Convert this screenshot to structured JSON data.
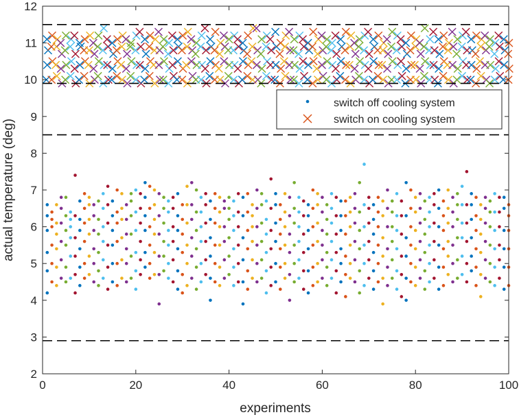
{
  "chart_data": {
    "type": "scatter",
    "title": "",
    "xlabel": "experiments",
    "ylabel": "actual temperature (deg)",
    "xlim": [
      0,
      100
    ],
    "ylim": [
      2,
      12
    ],
    "xticks": [
      0,
      20,
      40,
      60,
      80,
      100
    ],
    "yticks": [
      2,
      3,
      4,
      5,
      6,
      7,
      8,
      9,
      10,
      11,
      12
    ],
    "grid": false,
    "legend_position": "upper-right, inside",
    "legend": [
      {
        "label": "switch off cooling system",
        "marker": "dot",
        "color": "#0072BD"
      },
      {
        "label": "switch on cooling system",
        "marker": "x",
        "color": "#D95319"
      }
    ],
    "color_order": [
      "#0072BD",
      "#D95319",
      "#EDB120",
      "#7E2F8E",
      "#77AC30",
      "#4DBEEE",
      "#A2142F"
    ],
    "reference_lines": [
      11.5,
      9.9,
      8.5,
      2.9
    ],
    "off": [
      [
        4.2,
        4.8,
        5.3,
        5.9,
        6.3,
        6.6
      ],
      [
        4.5,
        5.0,
        5.5,
        6.0,
        6.4,
        6.2
      ],
      [
        4.4,
        4.9,
        5.4,
        5.8,
        6.1,
        6.6
      ],
      [
        4.6,
        5.1,
        5.6,
        6.1,
        6.5,
        6.8
      ],
      [
        4.5,
        4.9,
        5.5,
        5.9,
        6.3,
        6.8
      ],
      [
        4.6,
        5.2,
        5.7,
        6.0,
        6.4,
        6.2
      ],
      [
        4.2,
        4.7,
        5.2,
        5.7,
        6.3,
        7.4
      ],
      [
        4.4,
        4.9,
        5.4,
        5.9,
        6.2,
        6.7
      ],
      [
        4.6,
        5.0,
        5.6,
        6.1,
        6.5,
        6.9
      ],
      [
        4.7,
        5.2,
        5.8,
        6.2,
        6.6,
        6.8
      ],
      [
        4.5,
        5.0,
        5.4,
        5.9,
        6.3,
        6.6
      ],
      [
        4.4,
        4.8,
        5.3,
        5.8,
        6.2,
        6.7
      ],
      [
        4.6,
        5.1,
        5.6,
        6.0,
        6.5,
        6.9
      ],
      [
        4.3,
        4.9,
        5.5,
        6.1,
        6.6,
        7.1
      ],
      [
        4.5,
        5.0,
        5.5,
        5.9,
        6.3,
        6.7
      ],
      [
        4.4,
        5.0,
        5.6,
        6.1,
        6.4,
        7.0
      ],
      [
        4.6,
        5.1,
        5.7,
        6.2,
        6.5,
        6.9
      ],
      [
        4.5,
        5.0,
        5.4,
        5.8,
        6.2,
        6.6
      ],
      [
        4.6,
        5.2,
        5.8,
        6.3,
        6.7,
        6.9
      ],
      [
        4.3,
        4.8,
        5.3,
        5.9,
        6.4,
        7.0
      ],
      [
        4.7,
        5.1,
        5.6,
        6.1,
        6.5,
        6.9
      ],
      [
        4.9,
        5.3,
        5.9,
        6.3,
        6.8,
        7.2
      ],
      [
        4.6,
        5.0,
        5.5,
        6.0,
        6.5,
        7.1
      ],
      [
        4.7,
        5.3,
        5.8,
        6.2,
        6.6,
        7.0
      ],
      [
        3.9,
        4.7,
        5.2,
        5.8,
        6.3,
        6.9
      ],
      [
        4.8,
        5.2,
        5.6,
        6.1,
        6.5,
        6.8
      ],
      [
        4.6,
        5.0,
        5.5,
        5.9,
        6.4,
        6.7
      ],
      [
        4.5,
        5.1,
        5.6,
        6.0,
        6.5,
        6.8
      ],
      [
        4.3,
        4.8,
        5.4,
        5.9,
        6.3,
        6.9
      ],
      [
        4.2,
        4.7,
        5.3,
        5.8,
        6.2,
        6.6
      ],
      [
        4.4,
        5.0,
        5.5,
        6.1,
        6.6,
        7.1
      ],
      [
        4.6,
        5.2,
        5.7,
        6.2,
        6.6,
        7.2
      ],
      [
        4.3,
        4.9,
        5.4,
        5.9,
        6.4,
        7.0
      ],
      [
        4.5,
        5.0,
        5.6,
        6.0,
        6.4,
        6.8
      ],
      [
        4.7,
        5.1,
        5.6,
        6.1,
        6.6,
        6.9
      ],
      [
        4.0,
        4.6,
        5.2,
        5.7,
        6.2,
        6.7
      ],
      [
        4.5,
        5.0,
        5.5,
        6.1,
        6.5,
        6.9
      ],
      [
        4.4,
        4.9,
        5.5,
        6.0,
        6.4,
        6.8
      ],
      [
        4.6,
        5.1,
        5.6,
        6.0,
        6.5,
        6.7
      ],
      [
        4.7,
        5.2,
        5.7,
        6.2,
        6.5,
        6.8
      ],
      [
        4.4,
        4.9,
        5.4,
        5.9,
        6.3,
        6.7
      ],
      [
        4.5,
        5.0,
        5.5,
        6.0,
        6.4,
        6.9
      ],
      [
        3.9,
        4.5,
        5.1,
        5.7,
        6.3,
        6.8
      ],
      [
        4.3,
        4.8,
        5.4,
        5.9,
        6.4,
        6.9
      ],
      [
        4.6,
        5.1,
        5.6,
        6.0,
        6.3,
        6.6
      ],
      [
        4.5,
        5.0,
        5.5,
        6.0,
        6.5,
        7.0
      ],
      [
        4.6,
        5.1,
        5.6,
        6.1,
        6.6,
        6.9
      ],
      [
        4.2,
        4.8,
        5.3,
        5.8,
        6.2,
        6.7
      ],
      [
        4.4,
        4.9,
        5.4,
        5.9,
        6.5,
        7.3
      ],
      [
        4.5,
        5.0,
        5.6,
        6.1,
        6.6,
        6.9
      ],
      [
        4.3,
        4.9,
        5.4,
        5.8,
        6.2,
        6.6
      ],
      [
        4.6,
        5.0,
        5.5,
        6.0,
        6.4,
        6.9
      ],
      [
        4.0,
        4.7,
        5.3,
        5.8,
        6.3,
        6.8
      ],
      [
        4.5,
        5.0,
        5.5,
        6.1,
        6.5,
        7.2
      ],
      [
        4.6,
        5.1,
        5.6,
        6.0,
        6.4,
        6.8
      ],
      [
        4.3,
        4.8,
        5.3,
        5.8,
        6.3,
        6.7
      ],
      [
        4.2,
        4.8,
        5.4,
        5.9,
        6.3,
        6.6
      ],
      [
        4.4,
        4.9,
        5.5,
        6.0,
        6.5,
        7.0
      ],
      [
        4.5,
        5.0,
        5.6,
        6.1,
        6.6,
        6.9
      ],
      [
        4.6,
        5.1,
        5.5,
        5.9,
        6.4,
        6.8
      ],
      [
        4.4,
        4.9,
        5.3,
        5.8,
        6.2,
        6.6
      ],
      [
        4.6,
        5.1,
        5.6,
        6.1,
        6.5,
        6.9
      ],
      [
        4.2,
        4.8,
        5.3,
        5.8,
        6.3,
        6.8
      ],
      [
        4.5,
        5.0,
        5.4,
        5.9,
        6.3,
        6.7
      ],
      [
        4.1,
        4.7,
        5.2,
        5.8,
        6.3,
        6.7
      ],
      [
        4.6,
        5.0,
        5.5,
        6.0,
        6.4,
        6.8
      ],
      [
        4.5,
        5.1,
        5.6,
        6.1,
        6.5,
        6.9
      ],
      [
        4.2,
        4.8,
        5.4,
        5.9,
        6.4,
        7.2
      ],
      [
        4.4,
        5.0,
        5.5,
        6.0,
        6.6,
        7.7
      ],
      [
        4.6,
        5.1,
        5.6,
        6.1,
        6.5,
        6.8
      ],
      [
        4.3,
        4.8,
        5.3,
        5.8,
        6.2,
        6.6
      ],
      [
        4.5,
        5.0,
        5.5,
        6.0,
        6.4,
        6.8
      ],
      [
        3.9,
        4.6,
        5.2,
        5.7,
        6.3,
        6.7
      ],
      [
        4.4,
        4.9,
        5.4,
        6.0,
        6.5,
        7.0
      ],
      [
        4.6,
        5.1,
        5.6,
        6.0,
        6.4,
        6.7
      ],
      [
        4.3,
        4.8,
        5.4,
        5.9,
        6.3,
        6.9
      ],
      [
        4.1,
        4.7,
        5.2,
        5.8,
        6.3,
        6.7
      ],
      [
        4.0,
        4.6,
        5.2,
        5.7,
        6.3,
        7.2
      ],
      [
        4.5,
        5.0,
        5.5,
        6.0,
        6.5,
        7.0
      ],
      [
        4.4,
        4.9,
        5.4,
        5.9,
        6.4,
        6.8
      ],
      [
        4.6,
        5.1,
        5.6,
        6.1,
        6.5,
        6.9
      ],
      [
        4.3,
        4.8,
        5.3,
        5.8,
        6.2,
        6.7
      ],
      [
        4.5,
        5.0,
        5.5,
        6.0,
        6.4,
        6.8
      ],
      [
        4.6,
        5.1,
        5.6,
        6.1,
        6.6,
        6.9
      ],
      [
        4.3,
        4.9,
        5.5,
        6.0,
        6.5,
        7.0
      ],
      [
        4.4,
        4.9,
        5.4,
        5.9,
        6.3,
        6.7
      ],
      [
        4.7,
        5.2,
        5.6,
        6.1,
        6.5,
        7.0
      ],
      [
        4.5,
        5.0,
        5.5,
        6.0,
        6.4,
        6.8
      ],
      [
        4.6,
        5.1,
        5.7,
        6.2,
        6.6,
        6.9
      ],
      [
        4.7,
        5.2,
        5.7,
        6.1,
        6.6,
        7.1
      ],
      [
        4.5,
        5.0,
        5.6,
        6.1,
        6.6,
        7.5
      ],
      [
        4.8,
        5.2,
        5.7,
        6.2,
        6.6,
        6.9
      ],
      [
        4.4,
        4.9,
        5.4,
        5.9,
        6.3,
        6.8
      ],
      [
        4.1,
        4.7,
        5.3,
        5.8,
        6.2,
        6.6
      ],
      [
        4.6,
        5.1,
        5.6,
        6.1,
        6.5,
        6.8
      ],
      [
        4.5,
        5.0,
        5.5,
        6.0,
        6.4,
        6.7
      ],
      [
        4.4,
        4.9,
        5.4,
        5.9,
        6.4,
        6.9
      ],
      [
        4.6,
        5.1,
        5.5,
        6.0,
        6.4,
        6.8
      ],
      [
        4.3,
        4.9,
        5.4,
        5.9,
        6.5,
        6.8
      ],
      [
        4.4,
        4.9,
        5.4,
        5.9,
        6.3,
        6.6
      ]
    ],
    "on": [
      [
        10.0,
        10.4,
        10.8,
        11.1
      ],
      [
        10.0,
        10.5,
        10.9,
        11.2
      ],
      [
        10.1,
        10.4,
        10.9,
        11.1
      ],
      [
        9.9,
        10.3,
        10.7,
        11.0
      ],
      [
        10.0,
        10.4,
        10.8,
        11.2
      ],
      [
        10.1,
        10.5,
        10.9,
        11.1
      ],
      [
        9.9,
        10.3,
        10.7,
        11.2
      ],
      [
        10.0,
        10.4,
        10.9,
        11.0
      ],
      [
        10.1,
        10.5,
        10.8,
        11.1
      ],
      [
        9.9,
        10.4,
        10.8,
        11.2
      ],
      [
        10.0,
        10.3,
        10.7,
        11.0
      ],
      [
        10.1,
        10.5,
        10.9,
        11.2
      ],
      [
        9.9,
        10.4,
        10.8,
        11.4
      ],
      [
        10.0,
        10.4,
        10.9,
        11.1
      ],
      [
        10.0,
        10.3,
        10.7,
        11.0
      ],
      [
        10.1,
        10.5,
        10.8,
        11.1
      ],
      [
        10.0,
        10.4,
        10.9,
        11.2
      ],
      [
        9.9,
        10.3,
        10.7,
        11.1
      ],
      [
        10.1,
        10.5,
        10.9,
        11.0
      ],
      [
        10.0,
        10.4,
        10.8,
        11.2
      ],
      [
        9.9,
        10.4,
        10.9,
        11.3
      ],
      [
        10.0,
        10.3,
        10.7,
        11.1
      ],
      [
        10.1,
        10.5,
        10.9,
        11.2
      ],
      [
        9.9,
        10.4,
        10.8,
        11.1
      ],
      [
        10.0,
        10.4,
        10.8,
        11.3
      ],
      [
        10.0,
        10.5,
        10.9,
        11.1
      ],
      [
        9.9,
        10.3,
        10.7,
        11.0
      ],
      [
        10.1,
        10.4,
        10.8,
        11.2
      ],
      [
        10.0,
        10.5,
        10.9,
        11.1
      ],
      [
        10.0,
        10.3,
        10.8,
        11.2
      ],
      [
        9.9,
        10.4,
        10.9,
        11.3
      ],
      [
        10.1,
        10.5,
        10.8,
        11.1
      ],
      [
        10.0,
        10.4,
        10.7,
        11.0
      ],
      [
        10.0,
        10.4,
        10.9,
        11.2
      ],
      [
        9.9,
        10.3,
        10.8,
        11.4
      ],
      [
        10.1,
        10.5,
        10.9,
        11.1
      ],
      [
        10.0,
        10.4,
        10.8,
        11.3
      ],
      [
        10.0,
        10.3,
        10.7,
        11.0
      ],
      [
        9.9,
        10.5,
        10.9,
        11.2
      ],
      [
        10.1,
        10.4,
        10.8,
        11.1
      ],
      [
        10.0,
        10.4,
        10.8,
        11.2
      ],
      [
        9.9,
        10.3,
        10.9,
        11.1
      ],
      [
        10.0,
        10.5,
        10.8,
        11.0
      ],
      [
        10.1,
        10.4,
        10.7,
        11.2
      ],
      [
        10.0,
        10.5,
        10.9,
        11.4
      ],
      [
        10.0,
        10.4,
        10.8,
        11.4
      ],
      [
        9.9,
        10.3,
        10.7,
        11.1
      ],
      [
        10.1,
        10.5,
        10.9,
        11.2
      ],
      [
        10.0,
        10.4,
        10.8,
        11.1
      ],
      [
        10.0,
        10.4,
        10.9,
        11.3
      ],
      [
        9.9,
        10.3,
        10.7,
        11.0
      ],
      [
        10.1,
        10.5,
        10.9,
        11.2
      ],
      [
        10.0,
        10.4,
        10.8,
        11.3
      ],
      [
        10.0,
        10.4,
        10.8,
        11.1
      ],
      [
        9.9,
        10.3,
        10.7,
        11.2
      ],
      [
        10.1,
        10.5,
        10.9,
        11.1
      ],
      [
        10.0,
        10.4,
        10.8,
        11.0
      ],
      [
        9.9,
        10.5,
        10.9,
        11.3
      ],
      [
        10.0,
        10.3,
        10.7,
        11.1
      ],
      [
        10.1,
        10.4,
        10.8,
        11.2
      ],
      [
        10.0,
        10.5,
        10.9,
        11.1
      ],
      [
        9.9,
        10.4,
        10.8,
        11.0
      ],
      [
        10.0,
        10.3,
        10.7,
        11.2
      ],
      [
        10.1,
        10.5,
        10.9,
        11.1
      ],
      [
        10.0,
        10.4,
        10.8,
        11.3
      ],
      [
        9.9,
        10.4,
        10.9,
        11.2
      ],
      [
        10.0,
        10.3,
        10.7,
        11.0
      ],
      [
        10.1,
        10.5,
        10.9,
        11.1
      ],
      [
        10.0,
        10.4,
        10.8,
        11.2
      ],
      [
        9.9,
        10.3,
        10.7,
        11.3
      ],
      [
        10.0,
        10.5,
        10.9,
        11.1
      ],
      [
        10.1,
        10.4,
        10.8,
        11.2
      ],
      [
        10.0,
        10.4,
        10.8,
        11.0
      ],
      [
        9.9,
        10.3,
        10.7,
        11.1
      ],
      [
        10.0,
        10.5,
        10.9,
        11.3
      ],
      [
        10.0,
        10.4,
        10.8,
        11.2
      ],
      [
        10.1,
        10.5,
        10.9,
        11.1
      ],
      [
        9.9,
        10.3,
        10.7,
        11.0
      ],
      [
        10.0,
        10.4,
        10.8,
        11.2
      ],
      [
        10.0,
        10.4,
        10.9,
        11.1
      ],
      [
        9.9,
        10.3,
        10.7,
        11.0
      ],
      [
        10.1,
        10.5,
        10.9,
        11.4
      ],
      [
        10.0,
        10.4,
        10.8,
        11.1
      ],
      [
        10.0,
        10.4,
        10.8,
        11.3
      ],
      [
        9.9,
        10.3,
        10.7,
        11.1
      ],
      [
        10.1,
        10.5,
        10.9,
        11.2
      ],
      [
        10.0,
        10.4,
        10.8,
        11.0
      ],
      [
        9.9,
        10.4,
        10.9,
        11.3
      ],
      [
        10.0,
        10.3,
        10.7,
        11.1
      ],
      [
        10.1,
        10.5,
        10.9,
        11.2
      ],
      [
        10.0,
        10.4,
        10.8,
        11.3
      ],
      [
        10.0,
        10.4,
        10.8,
        11.1
      ],
      [
        9.9,
        10.3,
        10.7,
        11.2
      ],
      [
        10.1,
        10.5,
        10.9,
        11.1
      ],
      [
        10.0,
        10.4,
        10.8,
        11.2
      ],
      [
        9.9,
        10.4,
        10.9,
        11.1
      ],
      [
        10.0,
        10.3,
        10.7,
        11.0
      ],
      [
        10.1,
        10.5,
        10.9,
        11.2
      ],
      [
        10.0,
        10.4,
        10.8,
        11.1
      ],
      [
        10.0,
        10.3,
        10.7,
        11.0
      ]
    ]
  }
}
